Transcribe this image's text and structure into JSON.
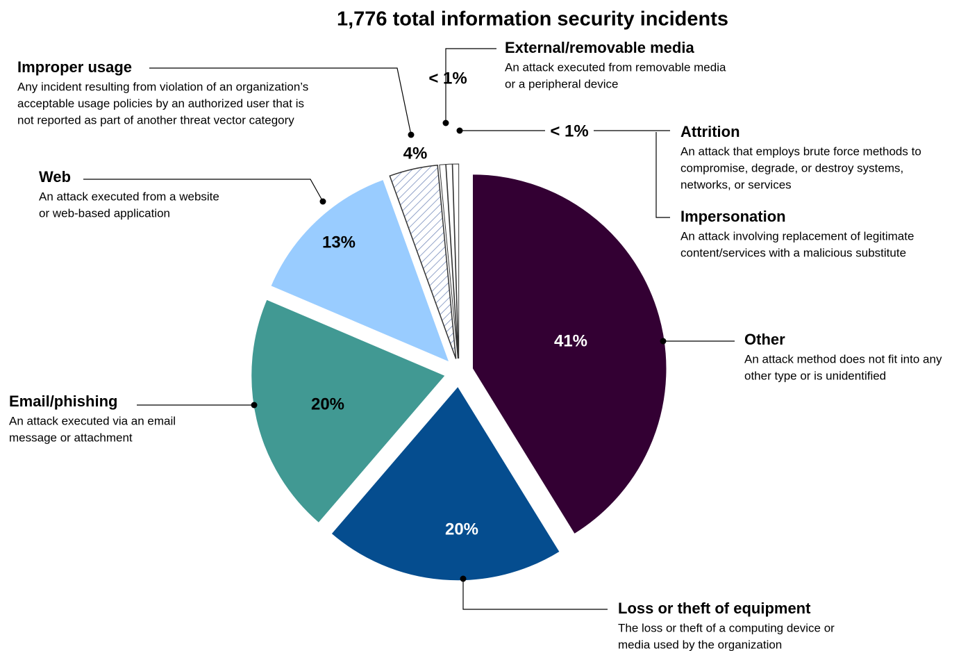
{
  "chart_data": {
    "type": "pie",
    "title": "1,776 total information security incidents",
    "categories": [
      "Other",
      "Loss or theft of equipment",
      "Email/phishing",
      "Web",
      "Improper usage",
      "External/removable media",
      "Impersonation",
      "Attrition"
    ],
    "values": [
      41,
      20,
      20,
      13,
      4,
      0.5,
      0.5,
      0.5
    ],
    "value_labels": [
      "41%",
      "20%",
      "20%",
      "13%",
      "4%",
      "< 1%",
      null,
      "< 1%"
    ],
    "colors": [
      "#330033",
      "#054d8f",
      "#419993",
      "#99ccff",
      "#6f86b8",
      "#ffffff",
      "#ffffff",
      "#ffffff"
    ],
    "patterns": [
      null,
      null,
      null,
      null,
      "hatch",
      null,
      null,
      null
    ],
    "descriptions": [
      [
        "An attack method does not fit into any",
        "other type or is unidentified"
      ],
      [
        "The loss or theft of a computing device or",
        "media used by the organization"
      ],
      [
        "An attack executed via an email",
        "message or attachment"
      ],
      [
        "An attack executed from a website",
        "or web-based application"
      ],
      [
        "Any incident resulting from violation of an organization’s",
        "acceptable usage policies by an authorized user that is",
        "not reported as part of another threat vector category"
      ],
      [
        "An attack executed from removable media",
        "or a peripheral device"
      ],
      [
        "An attack involving replacement of legitimate",
        "content/services with a malicious substitute"
      ],
      [
        "An attack that employs brute force methods to",
        "compromise, degrade, or destroy systems,",
        "networks, or services"
      ]
    ]
  }
}
